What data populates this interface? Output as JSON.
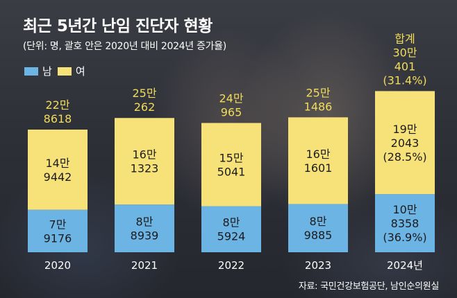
{
  "colors": {
    "male": "#6cb4e4",
    "female": "#f7e279",
    "total_label": "#f2dc5a",
    "text_dark": "#1b1b1b",
    "text_light": "#ffffff"
  },
  "header": {
    "title": "최근 5년간 난임 진단자 현황",
    "subtitle": "(단위: 명, 괄호 안은 2020년 대비 2024년 증가율)"
  },
  "legend": {
    "male": "남",
    "female": "여"
  },
  "source": "자료: 국민건강보험공단, 남인순의원실",
  "chart_data": {
    "type": "bar",
    "stacked": true,
    "categories": [
      "2020",
      "2021",
      "2022",
      "2023",
      "2024년"
    ],
    "series": [
      {
        "name": "남",
        "values": [
          79176,
          88939,
          85924,
          89885,
          108358
        ],
        "labels": [
          [
            "7만",
            "9176"
          ],
          [
            "8만",
            "8939"
          ],
          [
            "8만",
            "5924"
          ],
          [
            "8만",
            "9885"
          ],
          [
            "10만",
            "8358",
            "(36.9%)"
          ]
        ]
      },
      {
        "name": "여",
        "values": [
          149442,
          161323,
          155041,
          161601,
          192043
        ],
        "labels": [
          [
            "14만",
            "9442"
          ],
          [
            "16만",
            "1323"
          ],
          [
            "15만",
            "5041"
          ],
          [
            "16만",
            "1601"
          ],
          [
            "19만",
            "2043",
            "(28.5%)"
          ]
        ]
      }
    ],
    "totals": [
      228618,
      250262,
      240965,
      251486,
      300401
    ],
    "total_labels": [
      [
        "22만",
        "8618"
      ],
      [
        "25만",
        "262"
      ],
      [
        "24만",
        "965"
      ],
      [
        "25만",
        "1486"
      ],
      [
        "합계",
        "30만",
        "401",
        "(31.4%)"
      ]
    ],
    "ylim": [
      0,
      310000
    ],
    "grid": false,
    "legend_position": "top-left"
  }
}
